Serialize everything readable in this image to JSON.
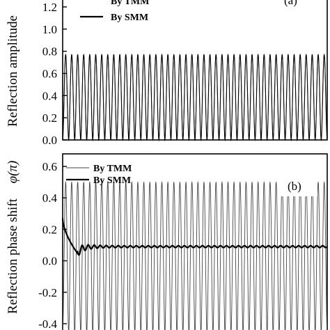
{
  "chart_data": [
    {
      "type": "line",
      "panel_label": "(a)",
      "ylabel": "Reflection amplitude",
      "ylim": [
        0,
        1.3
      ],
      "yticks": [
        "0.0",
        "0.2",
        "0.4",
        "0.6",
        "0.8",
        "1.0",
        "1.2"
      ],
      "ytick_values": [
        0.0,
        0.2,
        0.4,
        0.6,
        0.8,
        1.0,
        1.2
      ],
      "legend_position": "top-left",
      "series": [
        {
          "name": "By TMM",
          "style": "thin",
          "color": "#555555",
          "min": 0.0,
          "max": 0.77,
          "periods": 44
        },
        {
          "name": "By SMM",
          "style": "thick",
          "color": "#000000",
          "min": 0.0,
          "max": 0.77,
          "periods": 44
        }
      ]
    },
    {
      "type": "line",
      "panel_label": "(b)",
      "ylabel": "Reflection phase shift",
      "yunit_label": "φ(π)",
      "ylim": [
        -0.48,
        0.68
      ],
      "yticks": [
        "0.6",
        "0.4",
        "0.2",
        "0.0",
        "-0.2",
        "-0.4"
      ],
      "ytick_values": [
        0.6,
        0.4,
        0.2,
        0.0,
        -0.2,
        -0.4
      ],
      "legend_position": "top-left",
      "series": [
        {
          "name": "By TMM",
          "style": "thin",
          "color": "#444444",
          "min": -0.46,
          "max": 0.5,
          "periods": 44
        },
        {
          "name": "By SMM",
          "style": "thick",
          "color": "#000000",
          "start_value": 0.27,
          "dip_value": 0.05,
          "steady_value": 0.09
        }
      ]
    }
  ]
}
